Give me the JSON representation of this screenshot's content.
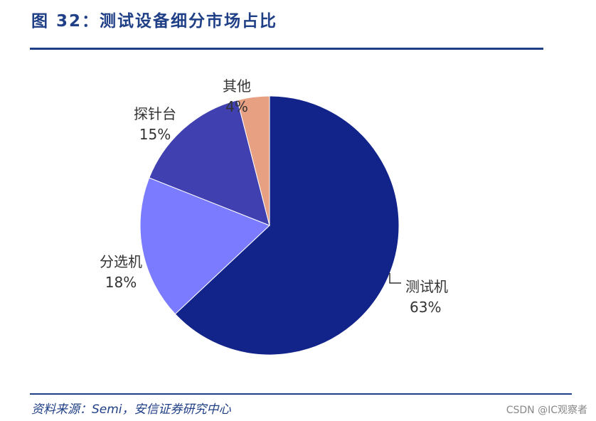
{
  "title": "图 32：测试设备细分市场占比",
  "source": "资料来源：Semi，安信证券研究中心",
  "watermark": "CSDN @IC观察者",
  "chart_data": {
    "type": "pie",
    "title": "",
    "categories": [
      "测试机",
      "分选机",
      "探针台",
      "其他"
    ],
    "values": [
      63,
      18,
      15,
      4
    ],
    "value_labels": [
      "63%",
      "18%",
      "15%",
      "4%"
    ],
    "colors": [
      "#12248a",
      "#7b7bff",
      "#4040b0",
      "#e8a083"
    ],
    "start_angle_deg": 0,
    "direction": "clockwise"
  }
}
